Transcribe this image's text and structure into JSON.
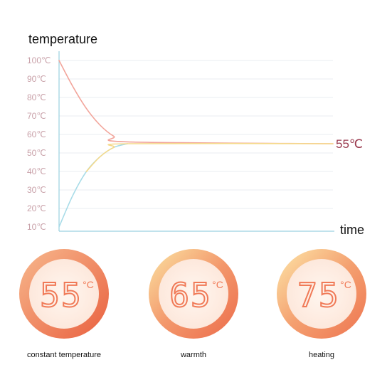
{
  "chart_data": {
    "type": "line",
    "ylabel": "temperature",
    "xlabel": "time",
    "y_ticks": [
      "100℃",
      "90℃",
      "80℃",
      "70℃",
      "60℃",
      "50℃",
      "40℃",
      "30℃",
      "20℃",
      "10℃"
    ],
    "ylim": [
      10,
      100
    ],
    "grid": true,
    "series": [
      {
        "color": "#f2a49a",
        "x": [
          0,
          0.05,
          0.1,
          0.15,
          0.2,
          0.25,
          1.0
        ],
        "values": [
          100,
          86,
          74,
          65,
          59,
          56,
          55
        ]
      },
      {
        "color": "#a8dce8",
        "x": [
          0,
          0.05,
          0.1,
          0.15,
          0.2,
          0.25
        ],
        "values": [
          10,
          27,
          40,
          48,
          53,
          55
        ]
      },
      {
        "color": "#f5d98a",
        "x": [
          0.1,
          0.15,
          0.2,
          0.25,
          1.0
        ],
        "values": [
          40,
          48,
          53,
          55,
          55
        ]
      }
    ],
    "end_label": "55℃"
  },
  "modes": [
    {
      "value": "55",
      "unit": "°C",
      "label": "constant temperature"
    },
    {
      "value": "65",
      "unit": "°C",
      "label": "warmth"
    },
    {
      "value": "75",
      "unit": "°C",
      "label": "heating"
    }
  ]
}
